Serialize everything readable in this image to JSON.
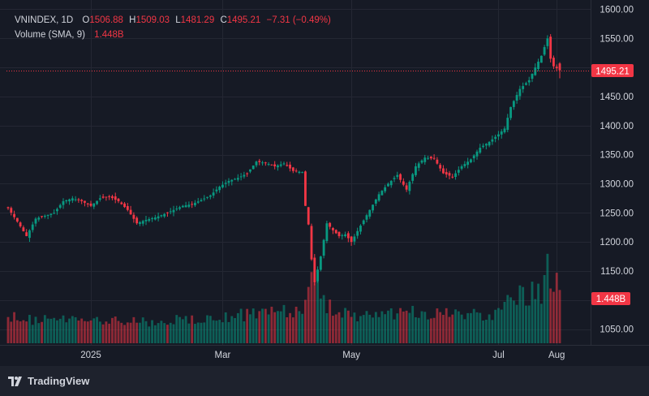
{
  "legend": {
    "symbol": "VNINDEX, 1D",
    "o_label": "O",
    "o_value": "1506.88",
    "h_label": "H",
    "h_value": "1509.03",
    "l_label": "L",
    "l_value": "1481.29",
    "c_label": "C",
    "c_value": "1495.21",
    "change": "−7.31 (−0.49%)",
    "volume_label": "Volume (SMA, 9)",
    "volume_value": "1.448B"
  },
  "footer": {
    "brand": "TradingView"
  },
  "colors": {
    "up": "#089981",
    "down": "#f23645",
    "background": "#161a25",
    "grid": "#242733",
    "axis_text": "#d1d4dc"
  },
  "chart_data": {
    "type": "candlestick",
    "title": "VNINDEX, 1D",
    "y_ticks": [
      1050,
      1100,
      1150,
      1200,
      1250,
      1300,
      1350,
      1400,
      1450,
      1500,
      1550,
      1600
    ],
    "y_tick_labels": [
      "1050.00",
      "1100.00",
      "1150.00",
      "1200.00",
      "1250.00",
      "1300.00",
      "1350.00",
      "1400.00",
      "1450.00",
      "1500.00",
      "1550.00",
      "1600.00"
    ],
    "y_hidden_labels": [
      "1100.00",
      "1500.00"
    ],
    "ylim": [
      1023,
      1616
    ],
    "x_labels": [
      "2025",
      "Mar",
      "May",
      "Jul",
      "Aug"
    ],
    "x_label_positions": [
      27,
      70,
      112,
      160,
      179
    ],
    "bar_count": 181,
    "last_price": 1495.21,
    "last_price_label": "1495.21",
    "volume_label": "1.448B",
    "volume_max_billion": 1.75,
    "price_anchors": [
      [
        0,
        1258
      ],
      [
        3,
        1235
      ],
      [
        6,
        1210
      ],
      [
        9,
        1240
      ],
      [
        12,
        1245
      ],
      [
        15,
        1250
      ],
      [
        18,
        1270
      ],
      [
        21,
        1275
      ],
      [
        24,
        1270
      ],
      [
        27,
        1262
      ],
      [
        30,
        1275
      ],
      [
        33,
        1278
      ],
      [
        36,
        1270
      ],
      [
        39,
        1255
      ],
      [
        42,
        1232
      ],
      [
        45,
        1238
      ],
      [
        48,
        1242
      ],
      [
        51,
        1248
      ],
      [
        54,
        1255
      ],
      [
        57,
        1262
      ],
      [
        60,
        1265
      ],
      [
        63,
        1272
      ],
      [
        66,
        1280
      ],
      [
        69,
        1295
      ],
      [
        72,
        1305
      ],
      [
        75,
        1310
      ],
      [
        78,
        1318
      ],
      [
        81,
        1338
      ],
      [
        84,
        1336
      ],
      [
        87,
        1330
      ],
      [
        90,
        1335
      ],
      [
        93,
        1322
      ],
      [
        96,
        1320
      ],
      [
        97,
        1262
      ],
      [
        98,
        1230
      ],
      [
        99,
        1170
      ],
      [
        100,
        1130
      ],
      [
        102,
        1175
      ],
      [
        104,
        1232
      ],
      [
        106,
        1220
      ],
      [
        108,
        1210
      ],
      [
        110,
        1213
      ],
      [
        112,
        1200
      ],
      [
        115,
        1228
      ],
      [
        118,
        1255
      ],
      [
        121,
        1282
      ],
      [
        124,
        1300
      ],
      [
        127,
        1315
      ],
      [
        130,
        1290
      ],
      [
        133,
        1330
      ],
      [
        136,
        1345
      ],
      [
        139,
        1343
      ],
      [
        142,
        1318
      ],
      [
        145,
        1312
      ],
      [
        148,
        1330
      ],
      [
        151,
        1342
      ],
      [
        154,
        1362
      ],
      [
        157,
        1372
      ],
      [
        160,
        1385
      ],
      [
        162,
        1395
      ],
      [
        164,
        1432
      ],
      [
        167,
        1463
      ],
      [
        170,
        1478
      ],
      [
        172,
        1500
      ],
      [
        174,
        1520
      ],
      [
        176,
        1550
      ],
      [
        177,
        1515
      ],
      [
        178,
        1502
      ],
      [
        180,
        1495.21
      ]
    ],
    "volume_anchors": [
      [
        0,
        0.55
      ],
      [
        10,
        0.5
      ],
      [
        20,
        0.5
      ],
      [
        30,
        0.48
      ],
      [
        40,
        0.45
      ],
      [
        50,
        0.47
      ],
      [
        60,
        0.52
      ],
      [
        70,
        0.55
      ],
      [
        80,
        0.6
      ],
      [
        90,
        0.65
      ],
      [
        96,
        0.75
      ],
      [
        98,
        1.4
      ],
      [
        100,
        1.6
      ],
      [
        102,
        0.9
      ],
      [
        104,
        0.75
      ],
      [
        108,
        0.7
      ],
      [
        112,
        0.55
      ],
      [
        120,
        0.65
      ],
      [
        130,
        0.62
      ],
      [
        140,
        0.66
      ],
      [
        150,
        0.6
      ],
      [
        158,
        0.62
      ],
      [
        164,
        0.9
      ],
      [
        170,
        1.05
      ],
      [
        174,
        1.1
      ],
      [
        176,
        1.75
      ],
      [
        178,
        1.25
      ],
      [
        180,
        1.15
      ]
    ]
  }
}
